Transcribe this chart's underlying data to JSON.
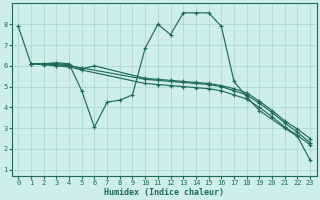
{
  "xlabel": "Humidex (Indice chaleur)",
  "bg_color": "#ceeee8",
  "grid_color": "#b0d8d8",
  "line_color": "#1e6b5a",
  "xlim": [
    -0.5,
    23.5
  ],
  "ylim": [
    0.7,
    9.0
  ],
  "yticks": [
    1,
    2,
    3,
    4,
    5,
    6,
    7,
    8
  ],
  "xticks": [
    0,
    1,
    2,
    3,
    4,
    5,
    6,
    7,
    8,
    9,
    10,
    11,
    12,
    13,
    14,
    15,
    16,
    17,
    18,
    19,
    20,
    21,
    22,
    23
  ],
  "lines": [
    {
      "x": [
        0,
        1,
        2,
        3,
        4,
        5,
        6,
        7,
        8,
        9,
        10,
        11,
        12,
        13,
        14,
        15,
        16,
        17,
        18,
        19,
        21,
        22,
        23
      ],
      "y": [
        7.9,
        6.1,
        6.1,
        6.15,
        6.1,
        4.8,
        3.05,
        4.25,
        4.35,
        4.6,
        6.85,
        8.0,
        7.5,
        8.55,
        8.55,
        8.55,
        7.9,
        5.25,
        4.5,
        3.85,
        3.0,
        2.6,
        1.45
      ]
    },
    {
      "x": [
        1,
        2,
        3,
        4,
        5,
        6,
        10,
        11,
        12,
        13,
        14,
        15,
        16,
        17,
        18,
        19,
        20,
        21,
        22,
        23
      ],
      "y": [
        6.1,
        6.1,
        6.1,
        6.05,
        5.85,
        6.0,
        5.4,
        5.35,
        5.3,
        5.25,
        5.2,
        5.15,
        5.05,
        4.9,
        4.7,
        4.3,
        3.85,
        3.35,
        2.95,
        2.5
      ]
    },
    {
      "x": [
        1,
        2,
        3,
        4,
        5,
        10,
        11,
        12,
        13,
        14,
        15,
        16,
        17,
        18,
        19,
        20,
        21,
        22,
        23
      ],
      "y": [
        6.1,
        6.1,
        6.05,
        6.0,
        5.9,
        5.35,
        5.3,
        5.25,
        5.2,
        5.15,
        5.1,
        5.0,
        4.8,
        4.6,
        4.2,
        3.75,
        3.25,
        2.8,
        2.3
      ]
    },
    {
      "x": [
        1,
        2,
        3,
        4,
        5,
        10,
        11,
        12,
        13,
        14,
        15,
        16,
        17,
        18,
        19,
        20,
        21,
        22,
        23
      ],
      "y": [
        6.1,
        6.05,
        6.0,
        5.95,
        5.8,
        5.15,
        5.1,
        5.05,
        5.0,
        4.95,
        4.9,
        4.8,
        4.6,
        4.4,
        4.0,
        3.55,
        3.05,
        2.65,
        2.2
      ]
    }
  ]
}
